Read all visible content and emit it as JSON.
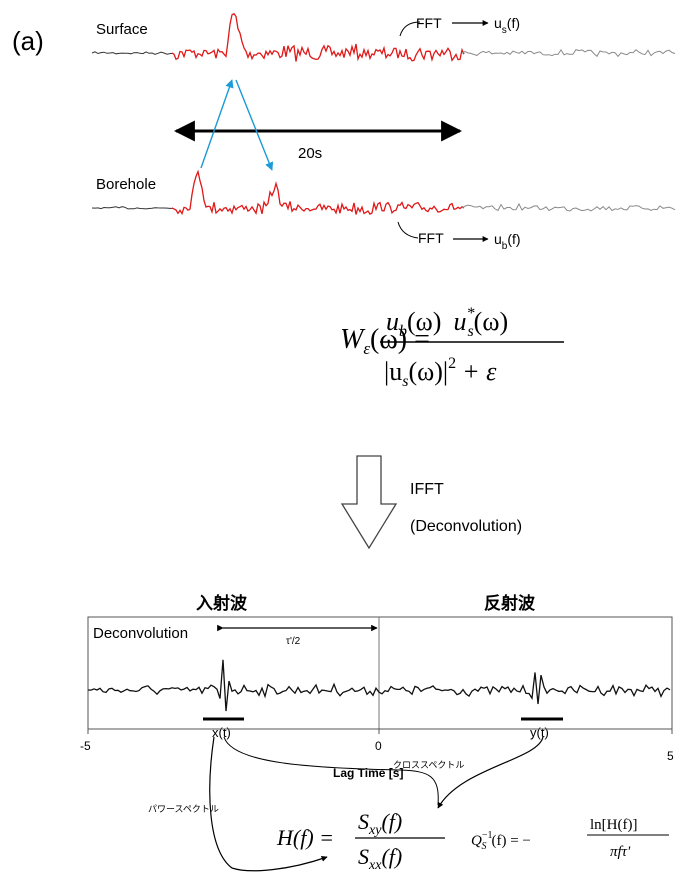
{
  "panel_label": "(a)",
  "top": {
    "surface_label": "Surface",
    "borehole_label": "Borehole",
    "fft_top": "FFT",
    "fft_top_result": "u",
    "fft_top_sub": "s",
    "fft_top_arg": "(f)",
    "fft_bottom": "FFT",
    "fft_bottom_result": "u",
    "fft_bottom_sub": "b",
    "fft_bottom_arg": "(f)",
    "window_label": "20s",
    "signal_color": "#e01818",
    "tail_color": "#8a8a8a",
    "arrow_color": "#1a9ad6"
  },
  "formula": {
    "lhs": "W",
    "lhs_sub": "ε",
    "lhs_arg": "(ω) =",
    "num_a": "u",
    "num_a_sub": "b",
    "num_a_arg": "(ω)",
    "num_b": "u",
    "num_b_sup": "*",
    "num_b_sub": "s",
    "num_b_arg": "(ω)",
    "den_a": "|u",
    "den_a_sub": "s",
    "den_a_arg": "(ω)|",
    "den_a_sup": "2",
    "den_b": "+ ε"
  },
  "process": {
    "line1": "IFFT",
    "line2": "(Deconvolution)"
  },
  "bottom": {
    "incident_label": "入射波",
    "reflected_label": "反射波",
    "trace_label": "Deconvolution",
    "tau_label": "τ'/2",
    "x_marker": "x(t)",
    "y_marker": "y(t)",
    "ticks": [
      "-5",
      "0",
      "5"
    ],
    "xlabel": "Lag Time [s]",
    "cross_spectrum": "クロススペクトル",
    "power_spectrum": "パワースペクトル",
    "h_formula": {
      "lhs": "H(f) =",
      "num": "S",
      "num_sub": "xy",
      "num_arg": "(f)",
      "den": "S",
      "den_sub": "xx",
      "den_arg": "(f)"
    },
    "q_formula": {
      "lhs": "Q",
      "lhs_sub": "S",
      "lhs_sup": "−1",
      "lhs_arg": "(f) = −",
      "num": "ln[H(f)]",
      "den": "πfτ'"
    }
  }
}
